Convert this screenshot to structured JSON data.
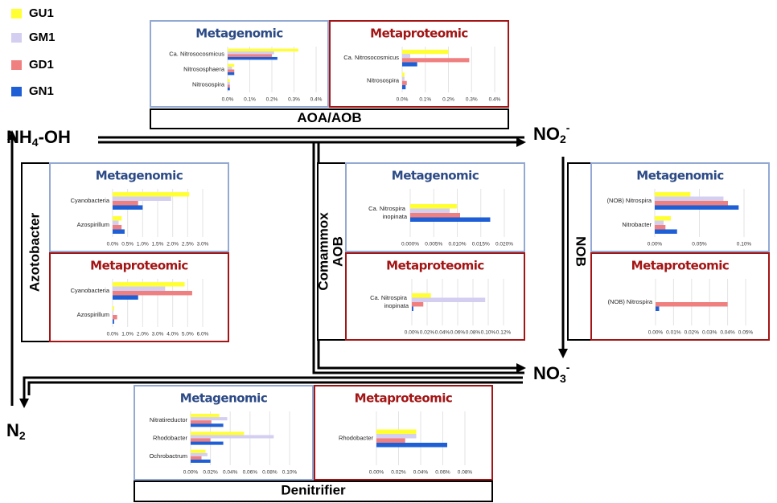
{
  "legend": [
    {
      "name": "GU1",
      "color": "#ffff33"
    },
    {
      "name": "GM1",
      "color": "#d4cef0"
    },
    {
      "name": "GD1",
      "color": "#f08080"
    },
    {
      "name": "GN1",
      "color": "#1f5fd6"
    }
  ],
  "nodes": [
    {
      "text": "NH",
      "sub": "4",
      "after": "-OH"
    },
    {
      "text": "NO",
      "sub": "2",
      "sup": "-"
    },
    {
      "text": "NO",
      "sub": "3",
      "sup": "-"
    },
    {
      "text": "N",
      "sub": "2"
    }
  ],
  "groups": [
    {
      "lines": [
        "AOA/AOB"
      ]
    },
    {
      "lines": [
        "Azotobacter"
      ]
    },
    {
      "lines": [
        "Comammox",
        "AOB"
      ]
    },
    {
      "lines": [
        "NOB"
      ]
    },
    {
      "lines": [
        "Denitrifier"
      ]
    }
  ],
  "chart_data": [
    {
      "type": "hbar",
      "title": "Metagenomic",
      "categories": [
        "Ca. Nitrosocosmicus",
        "Nitrososphaera",
        "Nitrosospira"
      ],
      "series": [
        {
          "values": [
            0.32,
            0.03,
            0.01
          ]
        },
        {
          "values": [
            0.21,
            0.02,
            0.01
          ]
        },
        {
          "values": [
            0.2,
            0.03,
            0.01
          ]
        },
        {
          "values": [
            0.225,
            0.03,
            0.01
          ]
        }
      ],
      "xlim": [
        0,
        0.4
      ],
      "xticks": [
        {
          "value": 0,
          "label": "0.0%"
        },
        {
          "value": 0.1,
          "label": "0.1%"
        },
        {
          "value": 0.2,
          "label": "0.2%"
        },
        {
          "value": 0.3,
          "label": "0.3%"
        },
        {
          "value": 0.4,
          "label": "0.4%"
        }
      ]
    },
    {
      "type": "hbar",
      "title": "Metaproteomic",
      "categories": [
        "Ca. Nitrosocosmicus",
        "Nitrosospira"
      ],
      "series": [
        {
          "values": [
            0.2,
            0.01
          ]
        },
        {
          "values": [
            0.035,
            0.01
          ]
        },
        {
          "values": [
            0.29,
            0.02
          ]
        },
        {
          "values": [
            0.065,
            0.015
          ]
        }
      ],
      "xlim": [
        0,
        0.4
      ],
      "xticks": [
        {
          "value": 0,
          "label": "0.0%"
        },
        {
          "value": 0.1,
          "label": "0.1%"
        },
        {
          "value": 0.2,
          "label": "0.2%"
        },
        {
          "value": 0.3,
          "label": "0.3%"
        },
        {
          "value": 0.4,
          "label": "0.4%"
        }
      ]
    },
    {
      "type": "hbar",
      "title": "Metagenomic",
      "categories": [
        "Cyanobacteria",
        "Azospirillum"
      ],
      "series": [
        {
          "values": [
            2.55,
            0.3
          ]
        },
        {
          "values": [
            1.95,
            0.2
          ]
        },
        {
          "values": [
            0.85,
            0.3
          ]
        },
        {
          "values": [
            1.0,
            0.4
          ]
        }
      ],
      "xlim": [
        0,
        3
      ],
      "xticks": [
        {
          "value": 0,
          "label": "0.0%"
        },
        {
          "value": 0.5,
          "label": "0.5%"
        },
        {
          "value": 1,
          "label": "1.0%"
        },
        {
          "value": 1.5,
          "label": "1.5%"
        },
        {
          "value": 2,
          "label": "2.0%"
        },
        {
          "value": 2.5,
          "label": "2.5%"
        },
        {
          "value": 3,
          "label": "3.0%"
        }
      ]
    },
    {
      "type": "hbar",
      "title": "Metaproteomic",
      "categories": [
        "Cyanobacteria",
        "Azospirillum"
      ],
      "series": [
        {
          "values": [
            4.8,
            0.1
          ]
        },
        {
          "values": [
            3.5,
            0.05
          ]
        },
        {
          "values": [
            5.3,
            0.3
          ]
        },
        {
          "values": [
            1.7,
            0.1
          ]
        }
      ],
      "xlim": [
        0,
        6
      ],
      "xticks": [
        {
          "value": 0,
          "label": "0.0%"
        },
        {
          "value": 1,
          "label": "1.0%"
        },
        {
          "value": 2,
          "label": "2.0%"
        },
        {
          "value": 3,
          "label": "3.0%"
        },
        {
          "value": 4,
          "label": "4.0%"
        },
        {
          "value": 5,
          "label": "5.0%"
        },
        {
          "value": 6,
          "label": "6.0%"
        }
      ]
    },
    {
      "type": "hbar",
      "title": "Metagenomic",
      "categories": [
        "Ca. Nitrospira inopinata"
      ],
      "series": [
        {
          "values": [
            0.0099
          ]
        },
        {
          "values": [
            0.0084
          ]
        },
        {
          "values": [
            0.0106
          ]
        },
        {
          "values": [
            0.017
          ]
        }
      ],
      "xlim": [
        0,
        0.02
      ],
      "xticks": [
        {
          "value": 0,
          "label": "0.000%"
        },
        {
          "value": 0.005,
          "label": "0.005%"
        },
        {
          "value": 0.01,
          "label": "0.010%"
        },
        {
          "value": 0.015,
          "label": "0.015%"
        },
        {
          "value": 0.02,
          "label": "0.020%"
        }
      ]
    },
    {
      "type": "hbar",
      "title": "Metaproteomic",
      "categories": [
        "Ca. Nitrospira inopinata"
      ],
      "series": [
        {
          "values": [
            0.025
          ]
        },
        {
          "values": [
            0.096
          ]
        },
        {
          "values": [
            0.015
          ]
        },
        {
          "values": [
            0.002
          ]
        }
      ],
      "xlim": [
        0,
        0.12
      ],
      "xticks": [
        {
          "value": 0,
          "label": "0.00%"
        },
        {
          "value": 0.02,
          "label": "0.02%"
        },
        {
          "value": 0.04,
          "label": "0.04%"
        },
        {
          "value": 0.06,
          "label": "0.06%"
        },
        {
          "value": 0.08,
          "label": "0.08%"
        },
        {
          "value": 0.1,
          "label": "0.10%"
        },
        {
          "value": 0.12,
          "label": "0.12%"
        }
      ]
    },
    {
      "type": "hbar",
      "title": "Metagenomic",
      "categories": [
        "(NOB) Nitrospira",
        "Nitrobacter"
      ],
      "series": [
        {
          "values": [
            0.04,
            0.018
          ]
        },
        {
          "values": [
            0.077,
            0.01
          ]
        },
        {
          "values": [
            0.082,
            0.012
          ]
        },
        {
          "values": [
            0.094,
            0.025
          ]
        }
      ],
      "xlim": [
        0,
        0.1
      ],
      "xticks": [
        {
          "value": 0,
          "label": "0.00%"
        },
        {
          "value": 0.05,
          "label": "0.05%"
        },
        {
          "value": 0.1,
          "label": "0.10%"
        }
      ]
    },
    {
      "type": "hbar",
      "title": "Metaproteomic",
      "categories": [
        "(NOB) Nitrospira"
      ],
      "series": [
        {
          "values": [
            0
          ]
        },
        {
          "values": [
            0
          ]
        },
        {
          "values": [
            0.04
          ]
        },
        {
          "values": [
            0.002
          ]
        }
      ],
      "xlim": [
        0,
        0.05
      ],
      "xticks": [
        {
          "value": 0,
          "label": "0.00%"
        },
        {
          "value": 0.01,
          "label": "0.01%"
        },
        {
          "value": 0.02,
          "label": "0.02%"
        },
        {
          "value": 0.03,
          "label": "0.03%"
        },
        {
          "value": 0.04,
          "label": "0.04%"
        },
        {
          "value": 0.05,
          "label": "0.05%"
        }
      ]
    },
    {
      "type": "hbar",
      "title": "Metagenomic",
      "categories": [
        "Nitratireductor",
        "Rhodobacter",
        "Ochrobactrum"
      ],
      "series": [
        {
          "values": [
            0.029,
            0.054,
            0.015
          ]
        },
        {
          "values": [
            0.037,
            0.084,
            0.017
          ]
        },
        {
          "values": [
            0.021,
            0.02,
            0.011
          ]
        },
        {
          "values": [
            0.033,
            0.033,
            0.02
          ]
        }
      ],
      "xlim": [
        0,
        0.1
      ],
      "xticks": [
        {
          "value": 0,
          "label": "0.00%"
        },
        {
          "value": 0.02,
          "label": "0.02%"
        },
        {
          "value": 0.04,
          "label": "0.04%"
        },
        {
          "value": 0.06,
          "label": "0.06%"
        },
        {
          "value": 0.08,
          "label": "0.08%"
        },
        {
          "value": 0.1,
          "label": "0.10%"
        }
      ]
    },
    {
      "type": "hbar",
      "title": "Metaproteomic",
      "categories": [
        "Rhodobacter"
      ],
      "series": [
        {
          "values": [
            0.036
          ]
        },
        {
          "values": [
            0.036
          ]
        },
        {
          "values": [
            0.026
          ]
        },
        {
          "values": [
            0.064
          ]
        }
      ],
      "xlim": [
        0,
        0.08
      ],
      "xticks": [
        {
          "value": 0,
          "label": "0.00%"
        },
        {
          "value": 0.02,
          "label": "0.02%"
        },
        {
          "value": 0.04,
          "label": "0.04%"
        },
        {
          "value": 0.06,
          "label": "0.06%"
        },
        {
          "value": 0.08,
          "label": "0.08%"
        }
      ]
    }
  ]
}
